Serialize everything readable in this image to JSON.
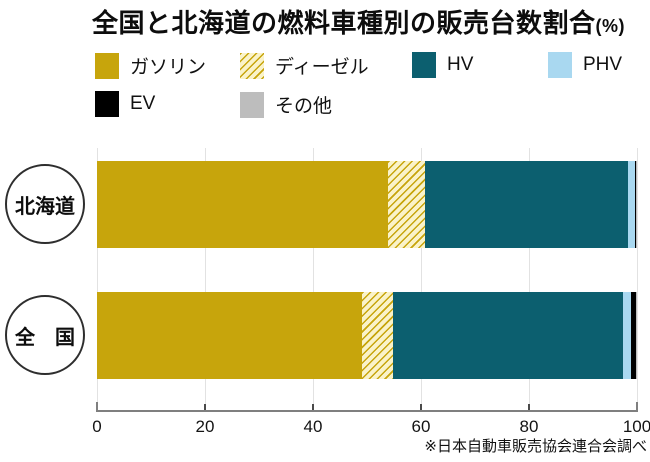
{
  "title": {
    "main": "全国と北海道の燃料車種別の販売台数割合",
    "unit": "(%)"
  },
  "source": "※日本自動車販売協会連合会調べ",
  "colors": {
    "gasoline": "#C7A50C",
    "diesel_line": "#C7A50C",
    "diesel_bg": "#FAF3C9",
    "hv": "#0C5F6F",
    "phv": "#A9D8F0",
    "ev": "#000000",
    "other": "#BDBDBD",
    "gridline": "#E2E2E2",
    "axis": "#7F7F7F"
  },
  "chart_data": {
    "type": "bar",
    "orientation": "horizontal",
    "stacked": true,
    "unit": "%",
    "title": "全国と北海道の燃料車種別の販売台数割合(%)",
    "xlim": [
      0,
      100
    ],
    "xticks": [
      0,
      20,
      40,
      60,
      80,
      100
    ],
    "grid": true,
    "legend_position": "top",
    "legend": [
      {
        "label": "ガソリン",
        "color": "#C7A50C",
        "pattern": "solid"
      },
      {
        "label": "ディーゼル",
        "color": "#C7A50C",
        "pattern": "hatch",
        "hatch_bg": "#FAF3C9"
      },
      {
        "label": "HV",
        "color": "#0C5F6F",
        "pattern": "solid"
      },
      {
        "label": "PHV",
        "color": "#A9D8F0",
        "pattern": "solid"
      },
      {
        "label": "EV",
        "color": "#000000",
        "pattern": "solid"
      },
      {
        "label": "その他",
        "color": "#BDBDBD",
        "pattern": "solid"
      }
    ],
    "rows": [
      {
        "region": "北海道",
        "values": [
          53.9,
          6.8,
          37.6,
          1.3,
          0.2,
          0.2
        ]
      },
      {
        "region": "全　国",
        "values": [
          49.0,
          5.8,
          42.6,
          1.5,
          0.9,
          0.2
        ]
      }
    ]
  }
}
